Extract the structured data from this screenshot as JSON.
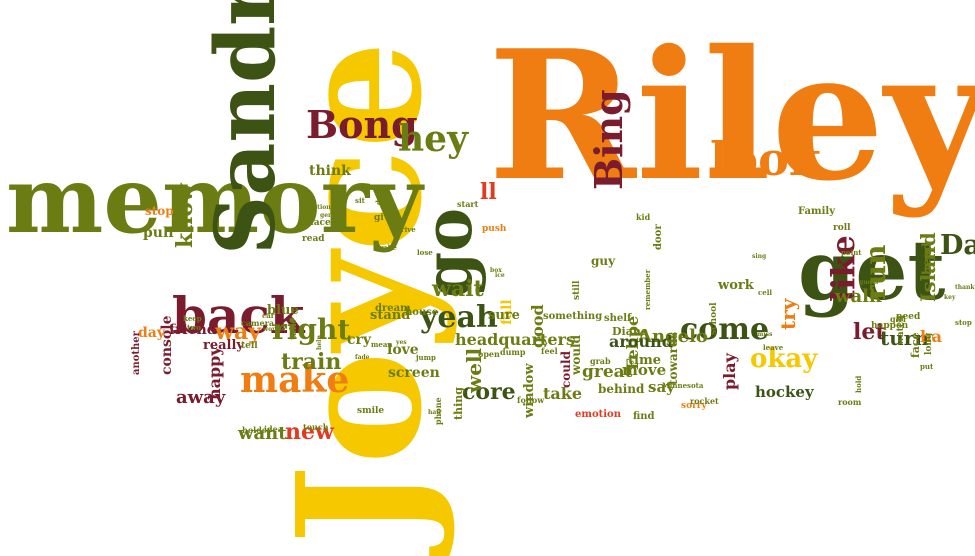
{
  "palette": {
    "olive": "#6b7d12",
    "dark_green": "#3d5314",
    "maroon": "#7a1c2e",
    "orange": "#ef7d12",
    "yellow": "#f5c800",
    "red": "#e23a1e",
    "brown": "#8a5a1a"
  },
  "words": [
    {
      "text": "Riley",
      "color": "orange"
    },
    {
      "text": "Joyce",
      "color": "yellow"
    },
    {
      "text": "memory",
      "color": "olive"
    },
    {
      "text": "Sandra",
      "color": "dark_green"
    },
    {
      "text": "get",
      "color": "dark_green"
    },
    {
      "text": "go",
      "color": "dark_green"
    },
    {
      "text": "back",
      "color": "maroon"
    },
    {
      "text": "look",
      "color": "orange"
    },
    {
      "text": "Bong",
      "color": "maroon"
    },
    {
      "text": "Bing",
      "color": "maroon"
    },
    {
      "text": "make",
      "color": "orange"
    },
    {
      "text": "like",
      "color": "maroon"
    },
    {
      "text": "hey",
      "color": "olive"
    },
    {
      "text": "Dad",
      "color": "dark_green"
    },
    {
      "text": "come",
      "color": "dark_green"
    },
    {
      "text": "yeah",
      "color": "dark_green"
    },
    {
      "text": "right",
      "color": "olive"
    },
    {
      "text": "run",
      "color": "olive"
    },
    {
      "text": "okay",
      "color": "yellow"
    },
    {
      "text": "know",
      "color": "olive"
    },
    {
      "text": "train",
      "color": "olive"
    },
    {
      "text": "new",
      "color": "red"
    },
    {
      "text": "let",
      "color": "maroon"
    },
    {
      "text": "core",
      "color": "dark_green"
    },
    {
      "text": "wait",
      "color": "olive"
    },
    {
      "text": "way",
      "color": "orange"
    },
    {
      "text": "want",
      "color": "olive"
    },
    {
      "text": "well",
      "color": "olive"
    },
    {
      "text": "try",
      "color": "orange"
    },
    {
      "text": "ll",
      "color": "red"
    },
    {
      "text": "Island",
      "color": "olive"
    },
    {
      "text": "walk",
      "color": "olive"
    },
    {
      "text": "turn",
      "color": "dark_green"
    },
    {
      "text": "ha",
      "color": "orange"
    },
    {
      "text": "headquarters",
      "color": "olive"
    },
    {
      "text": "Felipe",
      "color": "olive"
    },
    {
      "text": "Angelo",
      "color": "olive"
    },
    {
      "text": "happy",
      "color": "maroon"
    },
    {
      "text": "away",
      "color": "maroon"
    },
    {
      "text": "friend",
      "color": "maroon"
    },
    {
      "text": "think",
      "color": "olive"
    },
    {
      "text": "pull",
      "color": "olive"
    },
    {
      "text": "stop",
      "color": "orange"
    },
    {
      "text": "console",
      "color": "maroon"
    },
    {
      "text": "day",
      "color": "orange"
    },
    {
      "text": "really",
      "color": "maroon"
    },
    {
      "text": "love",
      "color": "olive"
    },
    {
      "text": "cry",
      "color": "olive"
    },
    {
      "text": "stand",
      "color": "olive"
    },
    {
      "text": "blue",
      "color": "olive"
    },
    {
      "text": "move",
      "color": "olive"
    },
    {
      "text": "take",
      "color": "olive"
    },
    {
      "text": "say",
      "color": "olive"
    },
    {
      "text": "time",
      "color": "olive"
    },
    {
      "text": "great",
      "color": "olive"
    },
    {
      "text": "around",
      "color": "dark_green"
    },
    {
      "text": "play",
      "color": "maroon"
    },
    {
      "text": "hockey",
      "color": "dark_green"
    },
    {
      "text": "good",
      "color": "olive"
    },
    {
      "text": "fall",
      "color": "yellow"
    },
    {
      "text": "screen",
      "color": "olive"
    },
    {
      "text": "sure",
      "color": "olive"
    },
    {
      "text": "would",
      "color": "olive"
    },
    {
      "text": "window",
      "color": "olive"
    },
    {
      "text": "could",
      "color": "maroon"
    },
    {
      "text": "towards",
      "color": "olive"
    },
    {
      "text": "work",
      "color": "olive"
    },
    {
      "text": "guy",
      "color": "olive"
    },
    {
      "text": "head",
      "color": "olive"
    },
    {
      "text": "face",
      "color": "olive"
    },
    {
      "text": "long",
      "color": "olive"
    },
    {
      "text": "something",
      "color": "olive"
    },
    {
      "text": "house",
      "color": "olive"
    },
    {
      "text": "dream",
      "color": "olive"
    },
    {
      "text": "behind",
      "color": "olive"
    },
    {
      "text": "Diane",
      "color": "olive"
    },
    {
      "text": "shelf",
      "color": "olive"
    },
    {
      "text": "emotion",
      "color": "red"
    },
    {
      "text": "thing",
      "color": "olive"
    },
    {
      "text": "find",
      "color": "olive"
    },
    {
      "text": "sorry",
      "color": "orange"
    },
    {
      "text": "Family",
      "color": "olive"
    },
    {
      "text": "Minnesota",
      "color": "olive"
    },
    {
      "text": "school",
      "color": "olive"
    },
    {
      "text": "remember",
      "color": "olive"
    },
    {
      "text": "door",
      "color": "olive"
    },
    {
      "text": "place",
      "color": "olive"
    },
    {
      "text": "read",
      "color": "olive"
    },
    {
      "text": "push",
      "color": "orange"
    },
    {
      "text": "give",
      "color": "olive"
    },
    {
      "text": "start",
      "color": "olive"
    },
    {
      "text": "kid",
      "color": "olive"
    },
    {
      "text": "still",
      "color": "olive"
    },
    {
      "text": "talk",
      "color": "olive"
    },
    {
      "text": "tell",
      "color": "olive"
    },
    {
      "text": "room",
      "color": "olive"
    },
    {
      "text": "rocket",
      "color": "olive"
    },
    {
      "text": "watch",
      "color": "olive"
    },
    {
      "text": "happen",
      "color": "olive"
    },
    {
      "text": "need",
      "color": "olive"
    },
    {
      "text": "roll",
      "color": "olive"
    },
    {
      "text": "girl",
      "color": "olive"
    },
    {
      "text": "put",
      "color": "olive"
    },
    {
      "text": "another",
      "color": "maroon"
    },
    {
      "text": "smile",
      "color": "olive"
    },
    {
      "text": "touch",
      "color": "olive"
    },
    {
      "text": "phone",
      "color": "olive"
    },
    {
      "text": "follow",
      "color": "olive"
    },
    {
      "text": "grab",
      "color": "olive"
    },
    {
      "text": "dump",
      "color": "olive"
    },
    {
      "text": "open",
      "color": "olive"
    },
    {
      "text": "feel",
      "color": "olive"
    },
    {
      "text": "jump",
      "color": "olive"
    },
    {
      "text": "mean",
      "color": "olive"
    },
    {
      "text": "lose",
      "color": "olive"
    },
    {
      "text": "drive",
      "color": "olive"
    },
    {
      "text": "wake",
      "color": "olive"
    },
    {
      "text": "holder",
      "color": "olive"
    },
    {
      "text": "idea",
      "color": "olive"
    },
    {
      "text": "camera",
      "color": "olive"
    },
    {
      "text": "keep",
      "color": "olive"
    },
    {
      "text": "two",
      "color": "olive"
    },
    {
      "text": "worker",
      "color": "olive"
    },
    {
      "text": "car",
      "color": "olive"
    },
    {
      "text": "sit",
      "color": "olive"
    },
    {
      "text": "drop",
      "color": "olive"
    },
    {
      "text": "emotion",
      "color": "olive"
    },
    {
      "text": "gen",
      "color": "olive"
    },
    {
      "text": "miss",
      "color": "olive"
    },
    {
      "text": "sing",
      "color": "olive"
    },
    {
      "text": "leave",
      "color": "olive"
    },
    {
      "text": "cell",
      "color": "olive"
    },
    {
      "text": "point",
      "color": "olive"
    },
    {
      "text": "hold",
      "color": "olive"
    },
    {
      "text": "guess",
      "color": "olive"
    },
    {
      "text": "thank",
      "color": "olive"
    },
    {
      "text": "key",
      "color": "olive"
    },
    {
      "text": "stop",
      "color": "olive"
    },
    {
      "text": "yes",
      "color": "olive"
    },
    {
      "text": "fade",
      "color": "olive"
    },
    {
      "text": "help",
      "color": "olive"
    },
    {
      "text": "ice",
      "color": "olive"
    },
    {
      "text": "box",
      "color": "olive"
    },
    {
      "text": "hair",
      "color": "olive"
    }
  ]
}
